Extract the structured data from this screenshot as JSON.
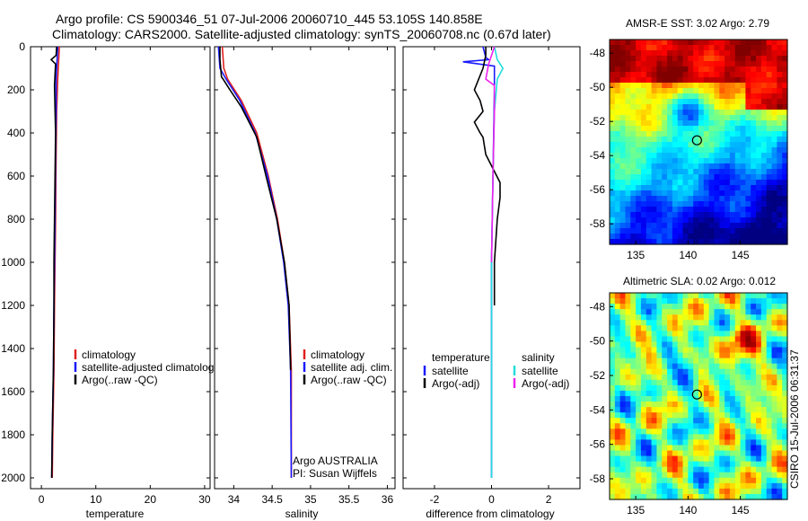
{
  "title": {
    "line1": "Argo profile: CS 5900346_51 07-Jul-2006 20060710_445 53.105S 140.858E",
    "line2": "Climatology: CARS2000. Satellite-adjusted climatology: synTS_20060708.nc (0.67d later)"
  },
  "side_label": "CSIRO 15-Jul-2006 06:31:37",
  "colors": {
    "climatology": "#e02020",
    "satellite": "#1a1aff",
    "argo": "#000000",
    "salinity_satellite": "#22dddd",
    "salinity_argo": "#ee22ee"
  },
  "chart_data": [
    {
      "id": "temperature",
      "type": "line",
      "xlabel": "temperature",
      "ylabel": "",
      "xlim": [
        -2,
        31
      ],
      "ylim": [
        2050,
        0
      ],
      "xticks": [
        0,
        10,
        20,
        30
      ],
      "yticks": [
        0,
        200,
        400,
        600,
        800,
        1000,
        1200,
        1400,
        1600,
        1800,
        2000
      ],
      "legend": [
        "climatology",
        "satellite-adjusted climatology",
        "Argo(..raw -QC)"
      ],
      "legend_position": "lower-right",
      "series": [
        {
          "name": "climatology",
          "color_key": "climatology",
          "x": [
            3.3,
            3.2,
            3.0,
            2.8,
            2.7,
            2.6,
            2.5,
            2.4,
            2.3,
            2.1,
            2.0
          ],
          "y": [
            0,
            50,
            150,
            300,
            500,
            800,
            1000,
            1200,
            1500,
            1800,
            2000
          ]
        },
        {
          "name": "satellite-adjusted climatology",
          "color_key": "satellite",
          "x": [
            3.0,
            2.9,
            2.7,
            2.7,
            2.6,
            2.5,
            2.4,
            2.3,
            2.2,
            2.0,
            1.9
          ],
          "y": [
            0,
            50,
            150,
            300,
            500,
            800,
            1000,
            1200,
            1500,
            1800,
            2000
          ]
        },
        {
          "name": "Argo(..raw -QC)",
          "color_key": "argo",
          "x": [
            2.8,
            2.7,
            1.8,
            2.6,
            2.4,
            2.6,
            2.5,
            2.4,
            2.3,
            2.3,
            2.2,
            2.0,
            1.9
          ],
          "y": [
            0,
            40,
            60,
            80,
            180,
            400,
            600,
            800,
            1000,
            1200,
            1500,
            1800,
            2000
          ]
        }
      ]
    },
    {
      "id": "salinity",
      "type": "line",
      "xlabel": "salinity",
      "ylabel": "",
      "xlim": [
        33.75,
        36.1
      ],
      "ylim": [
        2050,
        0
      ],
      "xticks": [
        34,
        34.5,
        35,
        35.5,
        36
      ],
      "legend": [
        "climatology",
        "satellite adj. clim.",
        "Argo(..raw -QC)"
      ],
      "legend_position": "lower-right",
      "annotations": [
        "Argo AUSTRALIA",
        "PI: Susan Wijffels"
      ],
      "series": [
        {
          "name": "climatology",
          "color_key": "climatology",
          "x": [
            33.85,
            33.87,
            33.92,
            34.1,
            34.3,
            34.45,
            34.57,
            34.66,
            34.72,
            34.75,
            34.75
          ],
          "y": [
            0,
            100,
            150,
            250,
            400,
            600,
            800,
            1000,
            1200,
            1500,
            2000
          ]
        },
        {
          "name": "satellite adj. clim.",
          "color_key": "satellite",
          "x": [
            33.8,
            33.82,
            33.9,
            34.08,
            34.28,
            34.44,
            34.56,
            34.65,
            34.71,
            34.74,
            34.75
          ],
          "y": [
            0,
            100,
            150,
            250,
            400,
            600,
            800,
            1000,
            1200,
            1500,
            2000
          ]
        },
        {
          "name": "Argo(..raw -QC)",
          "color_key": "argo",
          "x": [
            33.82,
            33.82,
            33.84,
            33.86,
            33.95,
            34.1,
            34.3,
            34.42,
            34.56,
            34.66,
            34.72,
            34.74
          ],
          "y": [
            0,
            60,
            140,
            150,
            200,
            280,
            420,
            600,
            800,
            1000,
            1200,
            1500
          ]
        }
      ]
    },
    {
      "id": "difference",
      "type": "line",
      "xlabel": "difference from climatology",
      "ylabel": "",
      "xlim": [
        -3.1,
        3.1
      ],
      "ylim": [
        2050,
        0
      ],
      "xticks": [
        -2,
        0,
        2
      ],
      "legend_groups": [
        {
          "title": "temperature",
          "entries": [
            "satellite",
            "Argo(-adj)"
          ]
        },
        {
          "title": "salinity",
          "entries": [
            "satellite",
            "Argo(-adj)"
          ]
        }
      ],
      "series": [
        {
          "name": "temperature satellite",
          "color_key": "satellite",
          "x": [
            -0.3,
            -0.2,
            -0.1,
            -1.0,
            0.1,
            0.1,
            0.05,
            0.0,
            0.0
          ],
          "y": [
            0,
            50,
            60,
            70,
            90,
            200,
            600,
            1000,
            2000
          ]
        },
        {
          "name": "temperature Argo(-adj)",
          "color_key": "argo",
          "x": [
            -0.2,
            -0.2,
            -0.3,
            -0.6,
            -0.4,
            -0.3,
            -0.6,
            -0.4,
            -0.3,
            -0.2,
            0.3,
            0.3,
            0.2,
            0.1,
            0.1
          ],
          "y": [
            0,
            40,
            100,
            200,
            250,
            300,
            350,
            400,
            420,
            500,
            630,
            700,
            800,
            1000,
            1200
          ]
        },
        {
          "name": "salinity satellite",
          "color_key": "salinity_satellite",
          "x": [
            0.1,
            0.2,
            0.4,
            0.2,
            0.1,
            0.05,
            0.0,
            0.0
          ],
          "y": [
            0,
            60,
            100,
            150,
            300,
            600,
            1000,
            2000
          ]
        },
        {
          "name": "salinity Argo(-adj)",
          "color_key": "salinity_argo",
          "x": [
            0.1,
            -0.1,
            -0.2,
            0.1,
            0.1,
            0.05,
            0.0
          ],
          "y": [
            0,
            80,
            150,
            180,
            300,
            600,
            1000
          ]
        }
      ]
    }
  ],
  "maps": [
    {
      "id": "sst",
      "type": "heatmap",
      "title": "AMSR-E SST: 3.02 Argo: 2.79",
      "xticks": [
        135,
        140,
        145
      ],
      "yticks": [
        -48,
        -50,
        -52,
        -54,
        -56,
        -58
      ],
      "xlim": [
        132.5,
        149.5
      ],
      "ylim": [
        -59.2,
        -47.2
      ],
      "marker": {
        "lon": 140.858,
        "lat": -53.105
      }
    },
    {
      "id": "sla",
      "type": "heatmap",
      "title": "Altimetric SLA: 0.02 Argo: 0.012",
      "xticks": [
        135,
        140,
        145
      ],
      "yticks": [
        -48,
        -50,
        -52,
        -54,
        -56,
        -58
      ],
      "xlim": [
        132.5,
        149.5
      ],
      "ylim": [
        -59.2,
        -47.2
      ],
      "marker": {
        "lon": 140.858,
        "lat": -53.105
      }
    }
  ]
}
